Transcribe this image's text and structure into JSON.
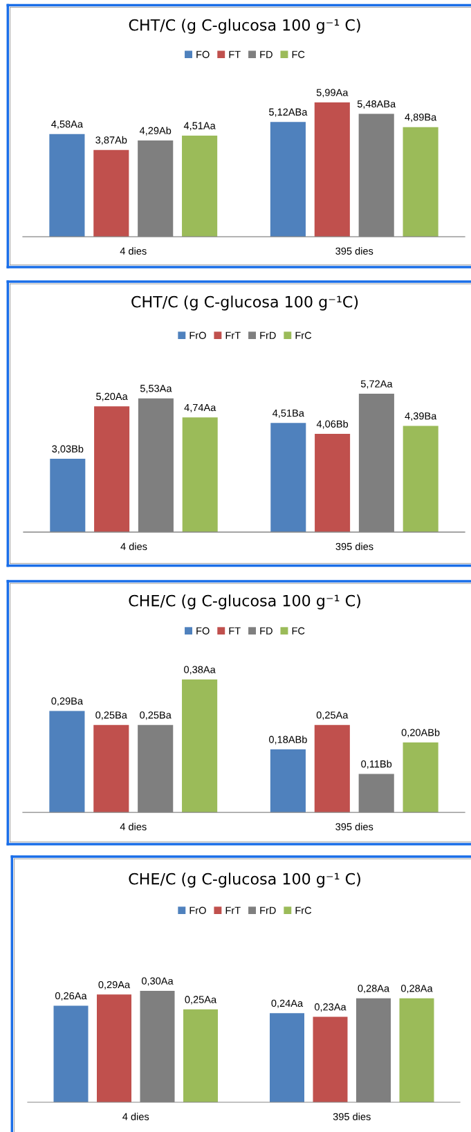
{
  "chart_data": [
    {
      "type": "bar",
      "title": "CHT/C (g C-glucosa 100 g⁻¹ C)",
      "categories": [
        "4 dies",
        "395 dies"
      ],
      "legend": "top",
      "tick_labels": "x",
      "series": [
        {
          "name": "FO",
          "color": "#4f81bd",
          "values": [
            4.58,
            5.12
          ],
          "value_labels": [
            "4,58Aa",
            "5,12ABa"
          ]
        },
        {
          "name": "FT",
          "color": "#c0504d",
          "values": [
            3.87,
            5.99
          ],
          "value_labels": [
            "3,87Ab",
            "5,99Aa"
          ]
        },
        {
          "name": "FD",
          "color": "#7f7f7f",
          "values": [
            4.29,
            5.48
          ],
          "value_labels": [
            "4,29Ab",
            "5,48ABa"
          ]
        },
        {
          "name": "FC",
          "color": "#9bbb59",
          "values": [
            4.51,
            4.89
          ],
          "value_labels": [
            "4,51Aa",
            "4,89Ba"
          ]
        }
      ]
    },
    {
      "type": "bar",
      "title": "CHT/C (g C-glucosa 100 g⁻¹C)",
      "categories": [
        "4 dies",
        "395 dies"
      ],
      "legend": "top",
      "tick_labels": "x",
      "series": [
        {
          "name": "FrO",
          "color": "#4f81bd",
          "values": [
            3.03,
            4.51
          ],
          "value_labels": [
            "3,03Bb",
            "4,51Ba"
          ]
        },
        {
          "name": "FrT",
          "color": "#c0504d",
          "values": [
            5.2,
            4.06
          ],
          "value_labels": [
            "5,20Aa",
            "4,06Bb"
          ]
        },
        {
          "name": "FrD",
          "color": "#7f7f7f",
          "values": [
            5.53,
            5.72
          ],
          "value_labels": [
            "5,53Aa",
            "5,72Aa"
          ]
        },
        {
          "name": "FrC",
          "color": "#9bbb59",
          "values": [
            4.74,
            4.39
          ],
          "value_labels": [
            "4,74Aa",
            "4,39Ba"
          ]
        }
      ]
    },
    {
      "type": "bar",
      "title": "CHE/C (g C-glucosa 100 g⁻¹ C)",
      "categories": [
        "4 dies",
        "395 dies"
      ],
      "legend": "top",
      "tick_labels": "x",
      "series": [
        {
          "name": "FO",
          "color": "#4f81bd",
          "values": [
            0.29,
            0.18
          ],
          "value_labels": [
            "0,29Ba",
            "0,18ABb"
          ]
        },
        {
          "name": "FT",
          "color": "#c0504d",
          "values": [
            0.25,
            0.25
          ],
          "value_labels": [
            "0,25Ba",
            "0,25Aa"
          ]
        },
        {
          "name": "FD",
          "color": "#7f7f7f",
          "values": [
            0.25,
            0.11
          ],
          "value_labels": [
            "0,25Ba",
            "0,11Bb"
          ]
        },
        {
          "name": "FC",
          "color": "#9bbb59",
          "values": [
            0.38,
            0.2
          ],
          "value_labels": [
            "0,38Aa",
            "0,20ABb"
          ]
        }
      ]
    },
    {
      "type": "bar",
      "title": "CHE/C (g C-glucosa 100 g⁻¹ C)",
      "categories": [
        "4 dies",
        "395 dies"
      ],
      "legend": "top",
      "tick_labels": "x",
      "series": [
        {
          "name": "FrO",
          "color": "#4f81bd",
          "values": [
            0.26,
            0.24
          ],
          "value_labels": [
            "0,26Aa",
            "0,24Aa"
          ]
        },
        {
          "name": "FrT",
          "color": "#c0504d",
          "values": [
            0.29,
            0.23
          ],
          "value_labels": [
            "0,29Aa",
            "0,23Aa"
          ]
        },
        {
          "name": "FrD",
          "color": "#7f7f7f",
          "values": [
            0.3,
            0.28
          ],
          "value_labels": [
            "0,30Aa",
            "0,28Aa"
          ]
        },
        {
          "name": "FrC",
          "color": "#9bbb59",
          "values": [
            0.25,
            0.28
          ],
          "value_labels": [
            "0,25Aa",
            "0,28Aa"
          ]
        }
      ]
    }
  ]
}
